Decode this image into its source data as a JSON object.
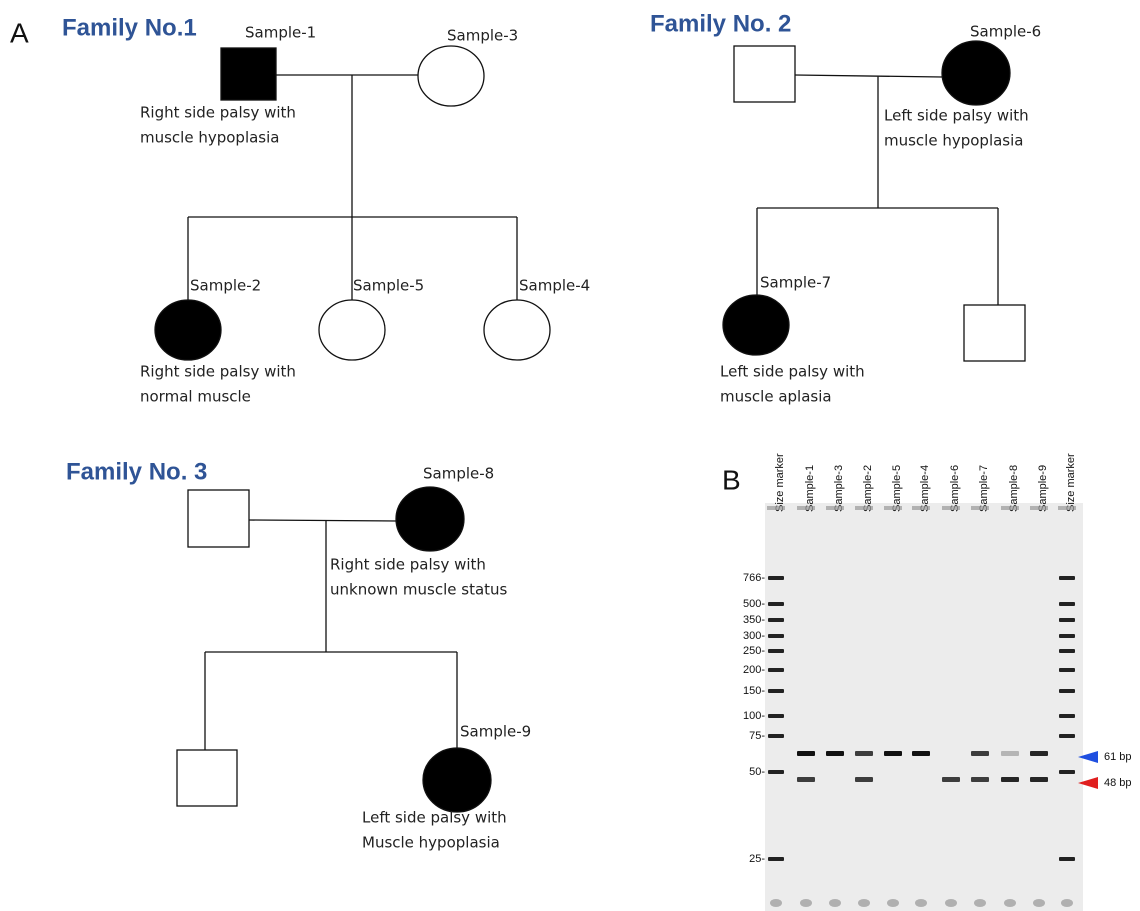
{
  "panel_a": {
    "label": "A"
  },
  "families": [
    {
      "title": "Family No.1",
      "members": [
        {
          "label": "Sample-1",
          "note": [
            "Right side palsy with",
            "muscle hypoplasia"
          ]
        },
        {
          "label": "Sample-3"
        },
        {
          "label": "Sample-2",
          "note": [
            "Right side palsy with",
            "normal muscle"
          ]
        },
        {
          "label": "Sample-5"
        },
        {
          "label": "Sample-4"
        }
      ]
    },
    {
      "title": "Family No. 2",
      "members": [
        {
          "label": "Sample-6",
          "note": [
            "Left side palsy with",
            "muscle hypoplasia"
          ]
        },
        {
          "label": "Sample-7",
          "note": [
            "Left side palsy with",
            "muscle aplasia"
          ]
        }
      ]
    },
    {
      "title": "Family No. 3",
      "members": [
        {
          "label": "Sample-8",
          "note": [
            "Right side palsy with",
            "unknown muscle status"
          ]
        },
        {
          "label": "Sample-9",
          "note": [
            "Left side palsy with",
            "Muscle hypoplasia"
          ]
        }
      ]
    }
  ],
  "panel_b": {
    "label": "B",
    "lanes": [
      "Size marker",
      "Sample-1",
      "Sample-3",
      "Sample-2",
      "Sample-5",
      "Sample-4",
      "Sample-6",
      "Sample-7",
      "Sample-8",
      "Sample-9",
      "Size marker"
    ],
    "size_markers": [
      "766-",
      "500-",
      "350-",
      "300-",
      "250-",
      "200-",
      "150-",
      "100-",
      "75-",
      "50-",
      "25-"
    ],
    "band_labels": [
      "61 bp",
      "48 bp"
    ]
  }
}
